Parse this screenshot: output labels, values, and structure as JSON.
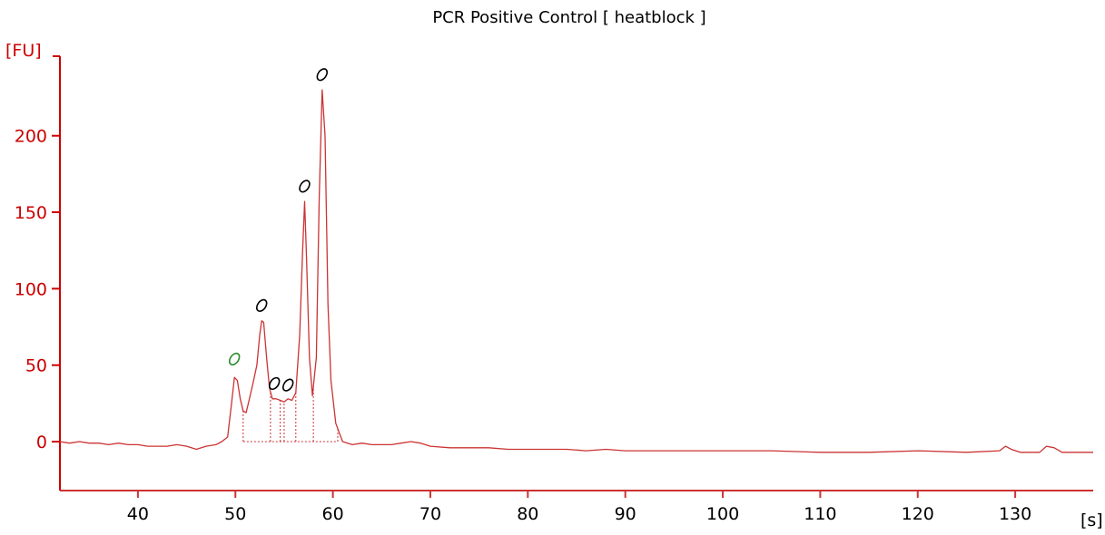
{
  "chart_data": {
    "type": "line",
    "title": "PCR Positive Control  [ heatblock ]",
    "ylabel": "[FU]",
    "xlabel": "[s]",
    "xlim": [
      32,
      138
    ],
    "ylim": [
      -32,
      252
    ],
    "x_ticks": [
      40,
      50,
      60,
      70,
      80,
      90,
      100,
      110,
      120,
      130
    ],
    "y_ticks": [
      0,
      50,
      100,
      150,
      200
    ],
    "grid": false,
    "series": [
      {
        "color": "#cc3333",
        "points": [
          [
            32,
            0
          ],
          [
            33,
            -1
          ],
          [
            34,
            0
          ],
          [
            35,
            -1
          ],
          [
            36,
            -1
          ],
          [
            37,
            -2
          ],
          [
            38,
            -1
          ],
          [
            39,
            -2
          ],
          [
            40,
            -2
          ],
          [
            41,
            -3
          ],
          [
            42,
            -3
          ],
          [
            43,
            -3
          ],
          [
            44,
            -2
          ],
          [
            45,
            -3
          ],
          [
            46,
            -5
          ],
          [
            47,
            -3
          ],
          [
            48,
            -2
          ],
          [
            48.6,
            0
          ],
          [
            49.2,
            3
          ],
          [
            49.6,
            25
          ],
          [
            49.9,
            42
          ],
          [
            50.2,
            40
          ],
          [
            50.5,
            28
          ],
          [
            50.8,
            20
          ],
          [
            51.1,
            19
          ],
          [
            51.4,
            27
          ],
          [
            51.8,
            38
          ],
          [
            52.2,
            50
          ],
          [
            52.5,
            70
          ],
          [
            52.7,
            79
          ],
          [
            52.9,
            78
          ],
          [
            53.2,
            55
          ],
          [
            53.5,
            35
          ],
          [
            53.8,
            28
          ],
          [
            54.2,
            28
          ],
          [
            54.6,
            27
          ],
          [
            55,
            26
          ],
          [
            55.4,
            28
          ],
          [
            55.8,
            27
          ],
          [
            56.2,
            32
          ],
          [
            56.6,
            70
          ],
          [
            56.9,
            125
          ],
          [
            57.1,
            157
          ],
          [
            57.3,
            120
          ],
          [
            57.6,
            55
          ],
          [
            57.9,
            30
          ],
          [
            58.3,
            55
          ],
          [
            58.6,
            160
          ],
          [
            58.9,
            230
          ],
          [
            59.2,
            200
          ],
          [
            59.5,
            90
          ],
          [
            59.8,
            40
          ],
          [
            60.3,
            12
          ],
          [
            61,
            0
          ],
          [
            62,
            -2
          ],
          [
            63,
            -1
          ],
          [
            64,
            -2
          ],
          [
            65,
            -2
          ],
          [
            66,
            -2
          ],
          [
            67,
            -1
          ],
          [
            68,
            0
          ],
          [
            69,
            -1
          ],
          [
            70,
            -3
          ],
          [
            72,
            -4
          ],
          [
            74,
            -4
          ],
          [
            76,
            -4
          ],
          [
            78,
            -5
          ],
          [
            80,
            -5
          ],
          [
            82,
            -5
          ],
          [
            84,
            -5
          ],
          [
            86,
            -6
          ],
          [
            88,
            -5
          ],
          [
            90,
            -6
          ],
          [
            92,
            -6
          ],
          [
            95,
            -6
          ],
          [
            100,
            -6
          ],
          [
            105,
            -6
          ],
          [
            110,
            -7
          ],
          [
            115,
            -7
          ],
          [
            120,
            -6
          ],
          [
            125,
            -7
          ],
          [
            128.4,
            -6
          ],
          [
            129,
            -3
          ],
          [
            129.6,
            -5
          ],
          [
            130.5,
            -7
          ],
          [
            132.5,
            -7
          ],
          [
            133.2,
            -3
          ],
          [
            134,
            -4
          ],
          [
            134.8,
            -7
          ],
          [
            136,
            -7
          ],
          [
            138,
            -7
          ]
        ]
      }
    ],
    "peak_markers": [
      {
        "x": 49.9,
        "y": 54,
        "color": "#2a8a2a"
      },
      {
        "x": 52.7,
        "y": 89,
        "color": "#000000"
      },
      {
        "x": 54.0,
        "y": 38,
        "color": "#000000"
      },
      {
        "x": 55.4,
        "y": 37,
        "color": "#000000"
      },
      {
        "x": 57.1,
        "y": 167,
        "color": "#000000"
      },
      {
        "x": 58.9,
        "y": 240,
        "color": "#000000"
      }
    ],
    "baseline_drops": [
      50.8,
      53.6,
      54.6,
      55.0,
      56.2,
      58.0,
      60.5
    ],
    "colors": {
      "trace": "#cc3333",
      "axis": "#cc0000",
      "x_axis": "#cc3333",
      "ladder_marker": "#2a8a2a",
      "peak_marker": "#000000"
    }
  }
}
